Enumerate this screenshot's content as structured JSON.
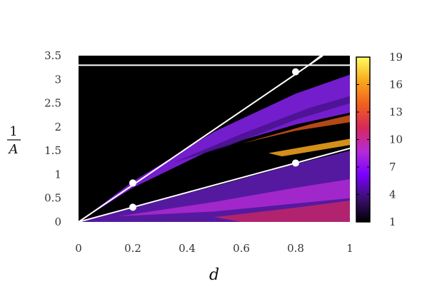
{
  "chart_data": {
    "type": "heatmap",
    "title": "",
    "xlabel": "d",
    "ylabel_numerator": "1",
    "ylabel_denominator": "A",
    "xlim": [
      0,
      1
    ],
    "ylim": [
      0,
      3.5
    ],
    "x_ticks": [
      "0",
      "0.2",
      "0.4",
      "0.6",
      "0.8",
      "1"
    ],
    "x_tick_values": [
      0,
      0.2,
      0.4,
      0.6,
      0.8,
      1
    ],
    "y_ticks": [
      "0",
      "0.5",
      "1",
      "1.5",
      "2",
      "2.5",
      "3",
      "3.5"
    ],
    "y_tick_values": [
      0,
      0.5,
      1,
      1.5,
      2,
      2.5,
      3,
      3.5
    ],
    "colorbar": {
      "range": [
        1,
        19
      ],
      "ticks": [
        "1",
        "4",
        "7",
        "10",
        "13",
        "16",
        "19"
      ],
      "tick_values": [
        1,
        4,
        7,
        10,
        13,
        16,
        19
      ],
      "colors": [
        "#000004",
        "#3b0f70",
        "#7a00ff",
        "#b52bd6",
        "#d8285a",
        "#f0601e",
        "#f9a81c",
        "#fcfe60"
      ]
    },
    "lines": [
      {
        "kind": "horizontal",
        "y": 3.3,
        "x_range": [
          0,
          1
        ]
      },
      {
        "kind": "line",
        "points": [
          [
            0,
            0
          ],
          [
            0.9,
            3.5
          ]
        ]
      },
      {
        "kind": "line",
        "points": [
          [
            0,
            0
          ],
          [
            1,
            1.55
          ]
        ]
      }
    ],
    "markers": [
      {
        "x": 0.2,
        "y": 0.82
      },
      {
        "x": 0.2,
        "y": 0.31
      },
      {
        "x": 0.8,
        "y": 3.16
      },
      {
        "x": 0.8,
        "y": 1.24
      }
    ],
    "background_color": "#000000"
  }
}
